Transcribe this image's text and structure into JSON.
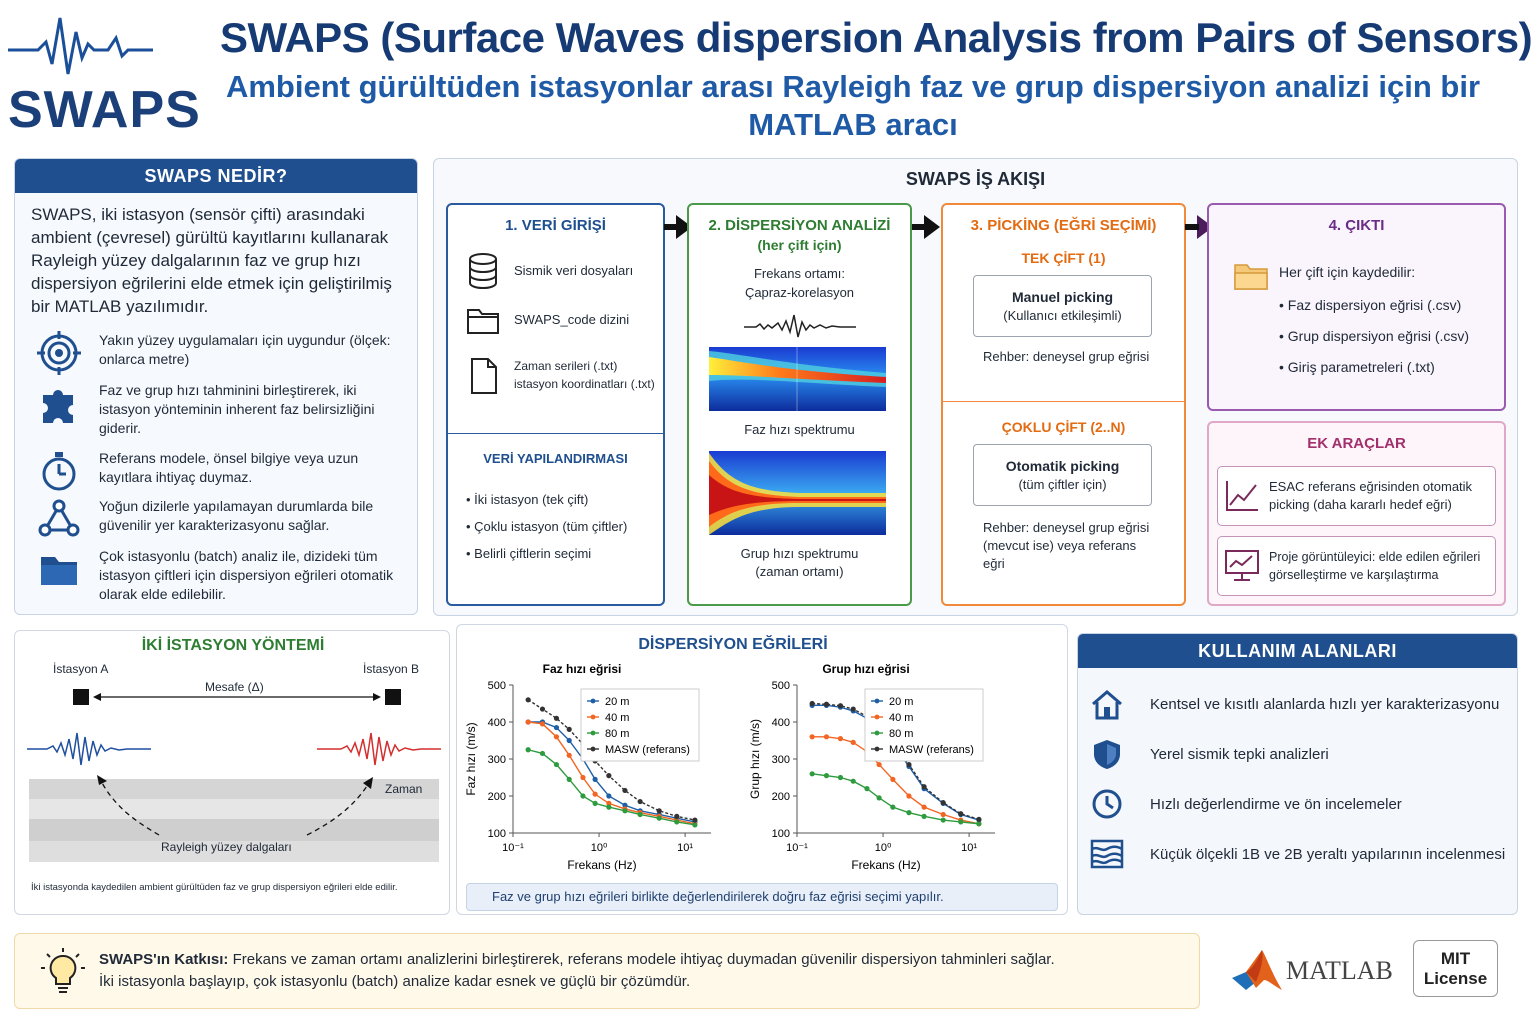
{
  "header": {
    "logo_text": "SWAPS",
    "title": "SWAPS (Surface Waves dispersion Analysis from Pairs of Sensors):",
    "subtitle": "Ambient gürültüden istasyonlar arası Rayleigh faz ve grup dispersiyon analizi için bir MATLAB aracı"
  },
  "what": {
    "heading": "SWAPS NEDİR?",
    "intro": "SWAPS, iki istasyon (sensör çifti) arasındaki ambient (çevresel) gürültü kayıtlarını kullanarak Rayleigh yüzey dalgalarının faz ve grup hızı dispersiyon eğrilerini elde etmek için geliştirilmiş bir MATLAB yazılımıdır.",
    "features": [
      {
        "icon": "target-icon",
        "text": "Yakın yüzey uygulamaları için uygundur (ölçek: onlarca metre)"
      },
      {
        "icon": "puzzle-icon",
        "text": "Faz ve grup hızı tahminini birleştirerek, iki istasyon yönteminin inherent faz belirsizliğini giderir."
      },
      {
        "icon": "stopwatch-icon",
        "text": "Referans modele, önsel bilgiye veya uzun kayıtlara ihtiyaç duymaz."
      },
      {
        "icon": "network-icon",
        "text": "Yoğun dizilerle yapılamayan durumlarda bile güvenilir yer karakterizasyonu sağlar."
      },
      {
        "icon": "folder-icon",
        "text": "Çok istasyonlu (batch) analiz ile, dizideki tüm istasyon çiftleri için dispersiyon eğrileri otomatik olarak elde edilebilir."
      }
    ]
  },
  "workflow": {
    "heading": "SWAPS İŞ AKIŞI",
    "step1": {
      "title": "1. VERİ GİRİŞİ",
      "items": [
        "Sismik veri dosyaları",
        "SWAPS_code dizini",
        "Zaman serileri (.txt)",
        "istasyon koordinatları (.txt)"
      ],
      "config_title": "VERİ YAPILANDIRMASI",
      "config_items": [
        "İki istasyon (tek çift)",
        "Çoklu istasyon (tüm çiftler)",
        "Belirli çiftlerin seçimi"
      ]
    },
    "step2": {
      "title": "2. DİSPERSİYON ANALİZİ",
      "subtitle": "(her çift için)",
      "freq_label": "Frekans ortamı:",
      "freq_method": "Çapraz-korelasyon",
      "phase_caption": "Faz hızı spektrumu",
      "group_caption": "Grup hızı spektrumu",
      "group_caption2": "(zaman ortamı)"
    },
    "step3": {
      "title": "3. PİCKİNG (EĞRİ SEÇİMİ)",
      "single_title": "TEK ÇİFT (1)",
      "manual_title": "Manuel picking",
      "manual_sub": "(Kullanıcı etkileşimli)",
      "single_guide": "Rehber: deneysel grup eğrisi",
      "multi_title": "ÇOKLU ÇİFT (2..N)",
      "auto_title": "Otomatik picking",
      "auto_sub": "(tüm çiftler için)",
      "multi_guide": "Rehber: deneysel grup eğrisi (mevcut ise) veya referans eğri"
    },
    "step4": {
      "title": "4. ÇIKTI",
      "saved_label": "Her çift için kaydedilir:",
      "items": [
        "Faz dispersiyon eğrisi (.csv)",
        "Grup dispersiyon eğrisi (.csv)",
        "Giriş parametreleri (.txt)"
      ]
    },
    "extra": {
      "title": "EK ARAÇLAR",
      "items": [
        "ESAC referans eğrisinden otomatik picking (daha kararlı hedef eğri)",
        "Proje görüntüleyici: elde edilen eğrileri görselleştirme ve karşılaştırma"
      ]
    }
  },
  "two_station": {
    "heading": "İKİ İSTASYON YÖNTEMİ",
    "station_a": "İstasyon A",
    "station_b": "İstasyon B",
    "distance": "Mesafe (Δ)",
    "time": "Zaman",
    "wave": "Rayleigh yüzey dalgaları",
    "caption": "İki istasyonda kaydedilen ambient gürültüden faz ve grup dispersiyon eğrileri elde edilir.",
    "colors": {
      "a": "#1f4f9f",
      "b": "#d32f2f"
    }
  },
  "dispersion": {
    "heading": "DİSPERSİYON EĞRİLERİ",
    "note": "Faz ve grup hızı eğrileri birlikte değerlendirilerek doğru faz eğrisi seçimi yapılır."
  },
  "chart_data": [
    {
      "type": "line",
      "title": "Faz hızı eğrisi",
      "xlabel": "Frekans (Hz)",
      "ylabel": "Faz hızı (m/s)",
      "xscale": "log",
      "xlim": [
        0.1,
        20
      ],
      "ylim": [
        100,
        500
      ],
      "yticks": [
        100,
        200,
        300,
        400,
        500
      ],
      "xtick_labels": [
        "10⁻¹",
        "10⁰",
        "10¹"
      ],
      "legend": "top-right",
      "series": [
        {
          "name": "20 m",
          "color": "#1f5fa8",
          "x": [
            0.15,
            0.22,
            0.32,
            0.45,
            0.65,
            0.9,
            1.3,
            2,
            3,
            5,
            8,
            13
          ],
          "y": [
            400,
            400,
            385,
            350,
            300,
            245,
            200,
            175,
            160,
            150,
            140,
            130
          ]
        },
        {
          "name": "40 m",
          "color": "#f26522",
          "x": [
            0.15,
            0.22,
            0.32,
            0.45,
            0.65,
            0.9,
            1.3,
            2,
            3,
            5,
            8,
            13
          ],
          "y": [
            400,
            395,
            360,
            310,
            250,
            205,
            180,
            165,
            155,
            145,
            135,
            125
          ]
        },
        {
          "name": "80 m",
          "color": "#2e9b3e",
          "x": [
            0.15,
            0.22,
            0.32,
            0.45,
            0.65,
            0.9,
            1.3,
            2,
            3,
            5,
            8,
            13
          ],
          "y": [
            325,
            315,
            285,
            245,
            200,
            180,
            170,
            160,
            150,
            140,
            130,
            122
          ]
        },
        {
          "name": "MASW (referans)",
          "color": "#333333",
          "x": [
            0.15,
            0.22,
            0.32,
            0.45,
            0.65,
            0.9,
            1.3,
            2,
            3,
            5,
            8,
            13
          ],
          "y": [
            460,
            435,
            410,
            380,
            340,
            295,
            255,
            215,
            185,
            160,
            145,
            135
          ]
        }
      ]
    },
    {
      "type": "line",
      "title": "Grup hızı eğrisi",
      "xlabel": "Frekans (Hz)",
      "ylabel": "Grup hızı (m/s)",
      "xscale": "log",
      "xlim": [
        0.1,
        20
      ],
      "ylim": [
        100,
        500
      ],
      "yticks": [
        100,
        200,
        300,
        400,
        500
      ],
      "xtick_labels": [
        "10⁻¹",
        "10⁰",
        "10¹"
      ],
      "legend": "top-right",
      "series": [
        {
          "name": "20 m",
          "color": "#1f5fa8",
          "x": [
            0.15,
            0.22,
            0.32,
            0.45,
            0.65,
            0.9,
            1.3,
            2,
            3,
            5,
            8,
            13
          ],
          "y": [
            445,
            445,
            440,
            430,
            410,
            380,
            340,
            280,
            220,
            180,
            150,
            135
          ]
        },
        {
          "name": "40 m",
          "color": "#f26522",
          "x": [
            0.15,
            0.22,
            0.32,
            0.45,
            0.65,
            0.9,
            1.3,
            2,
            3,
            5,
            8,
            13
          ],
          "y": [
            360,
            360,
            355,
            345,
            320,
            285,
            245,
            200,
            170,
            150,
            135,
            125
          ]
        },
        {
          "name": "80 m",
          "color": "#2e9b3e",
          "x": [
            0.15,
            0.22,
            0.32,
            0.45,
            0.65,
            0.9,
            1.3,
            2,
            3,
            5,
            8,
            13
          ],
          "y": [
            260,
            255,
            250,
            240,
            220,
            195,
            170,
            155,
            145,
            135,
            130,
            125
          ]
        },
        {
          "name": "MASW (referans)",
          "color": "#333333",
          "x": [
            0.15,
            0.22,
            0.32,
            0.45,
            0.65,
            0.9,
            1.3,
            2,
            3,
            5,
            8,
            13
          ],
          "y": [
            450,
            448,
            444,
            435,
            415,
            385,
            345,
            285,
            225,
            182,
            152,
            137
          ]
        }
      ]
    }
  ],
  "uses": {
    "heading": "KULLANIM ALANLARI",
    "items": [
      {
        "icon": "house-icon",
        "text": "Kentsel ve kısıtlı alanlarda hızlı yer karakterizasyonu"
      },
      {
        "icon": "shield-icon",
        "text": "Yerel sismik tepki analizleri"
      },
      {
        "icon": "clock-icon",
        "text": "Hızlı değerlendirme ve ön incelemeler"
      },
      {
        "icon": "layers-icon",
        "text": "Küçük ölçekli 1B ve 2B yeraltı yapılarının incelenmesi"
      }
    ]
  },
  "contribution": {
    "label": "SWAPS'ın Katkısı:",
    "text1": "Frekans ve zaman ortamı analizlerini birleştirerek, referans modele ihtiyaç duymadan güvenilir dispersiyon tahminleri sağlar.",
    "text2": "İki istasyonla başlayıp, çok istasyonlu (batch) analize kadar esnek ve güçlü bir çözümdür."
  },
  "footer": {
    "matlab": "MATLAB",
    "license_line1": "MIT",
    "license_line2": "License"
  }
}
